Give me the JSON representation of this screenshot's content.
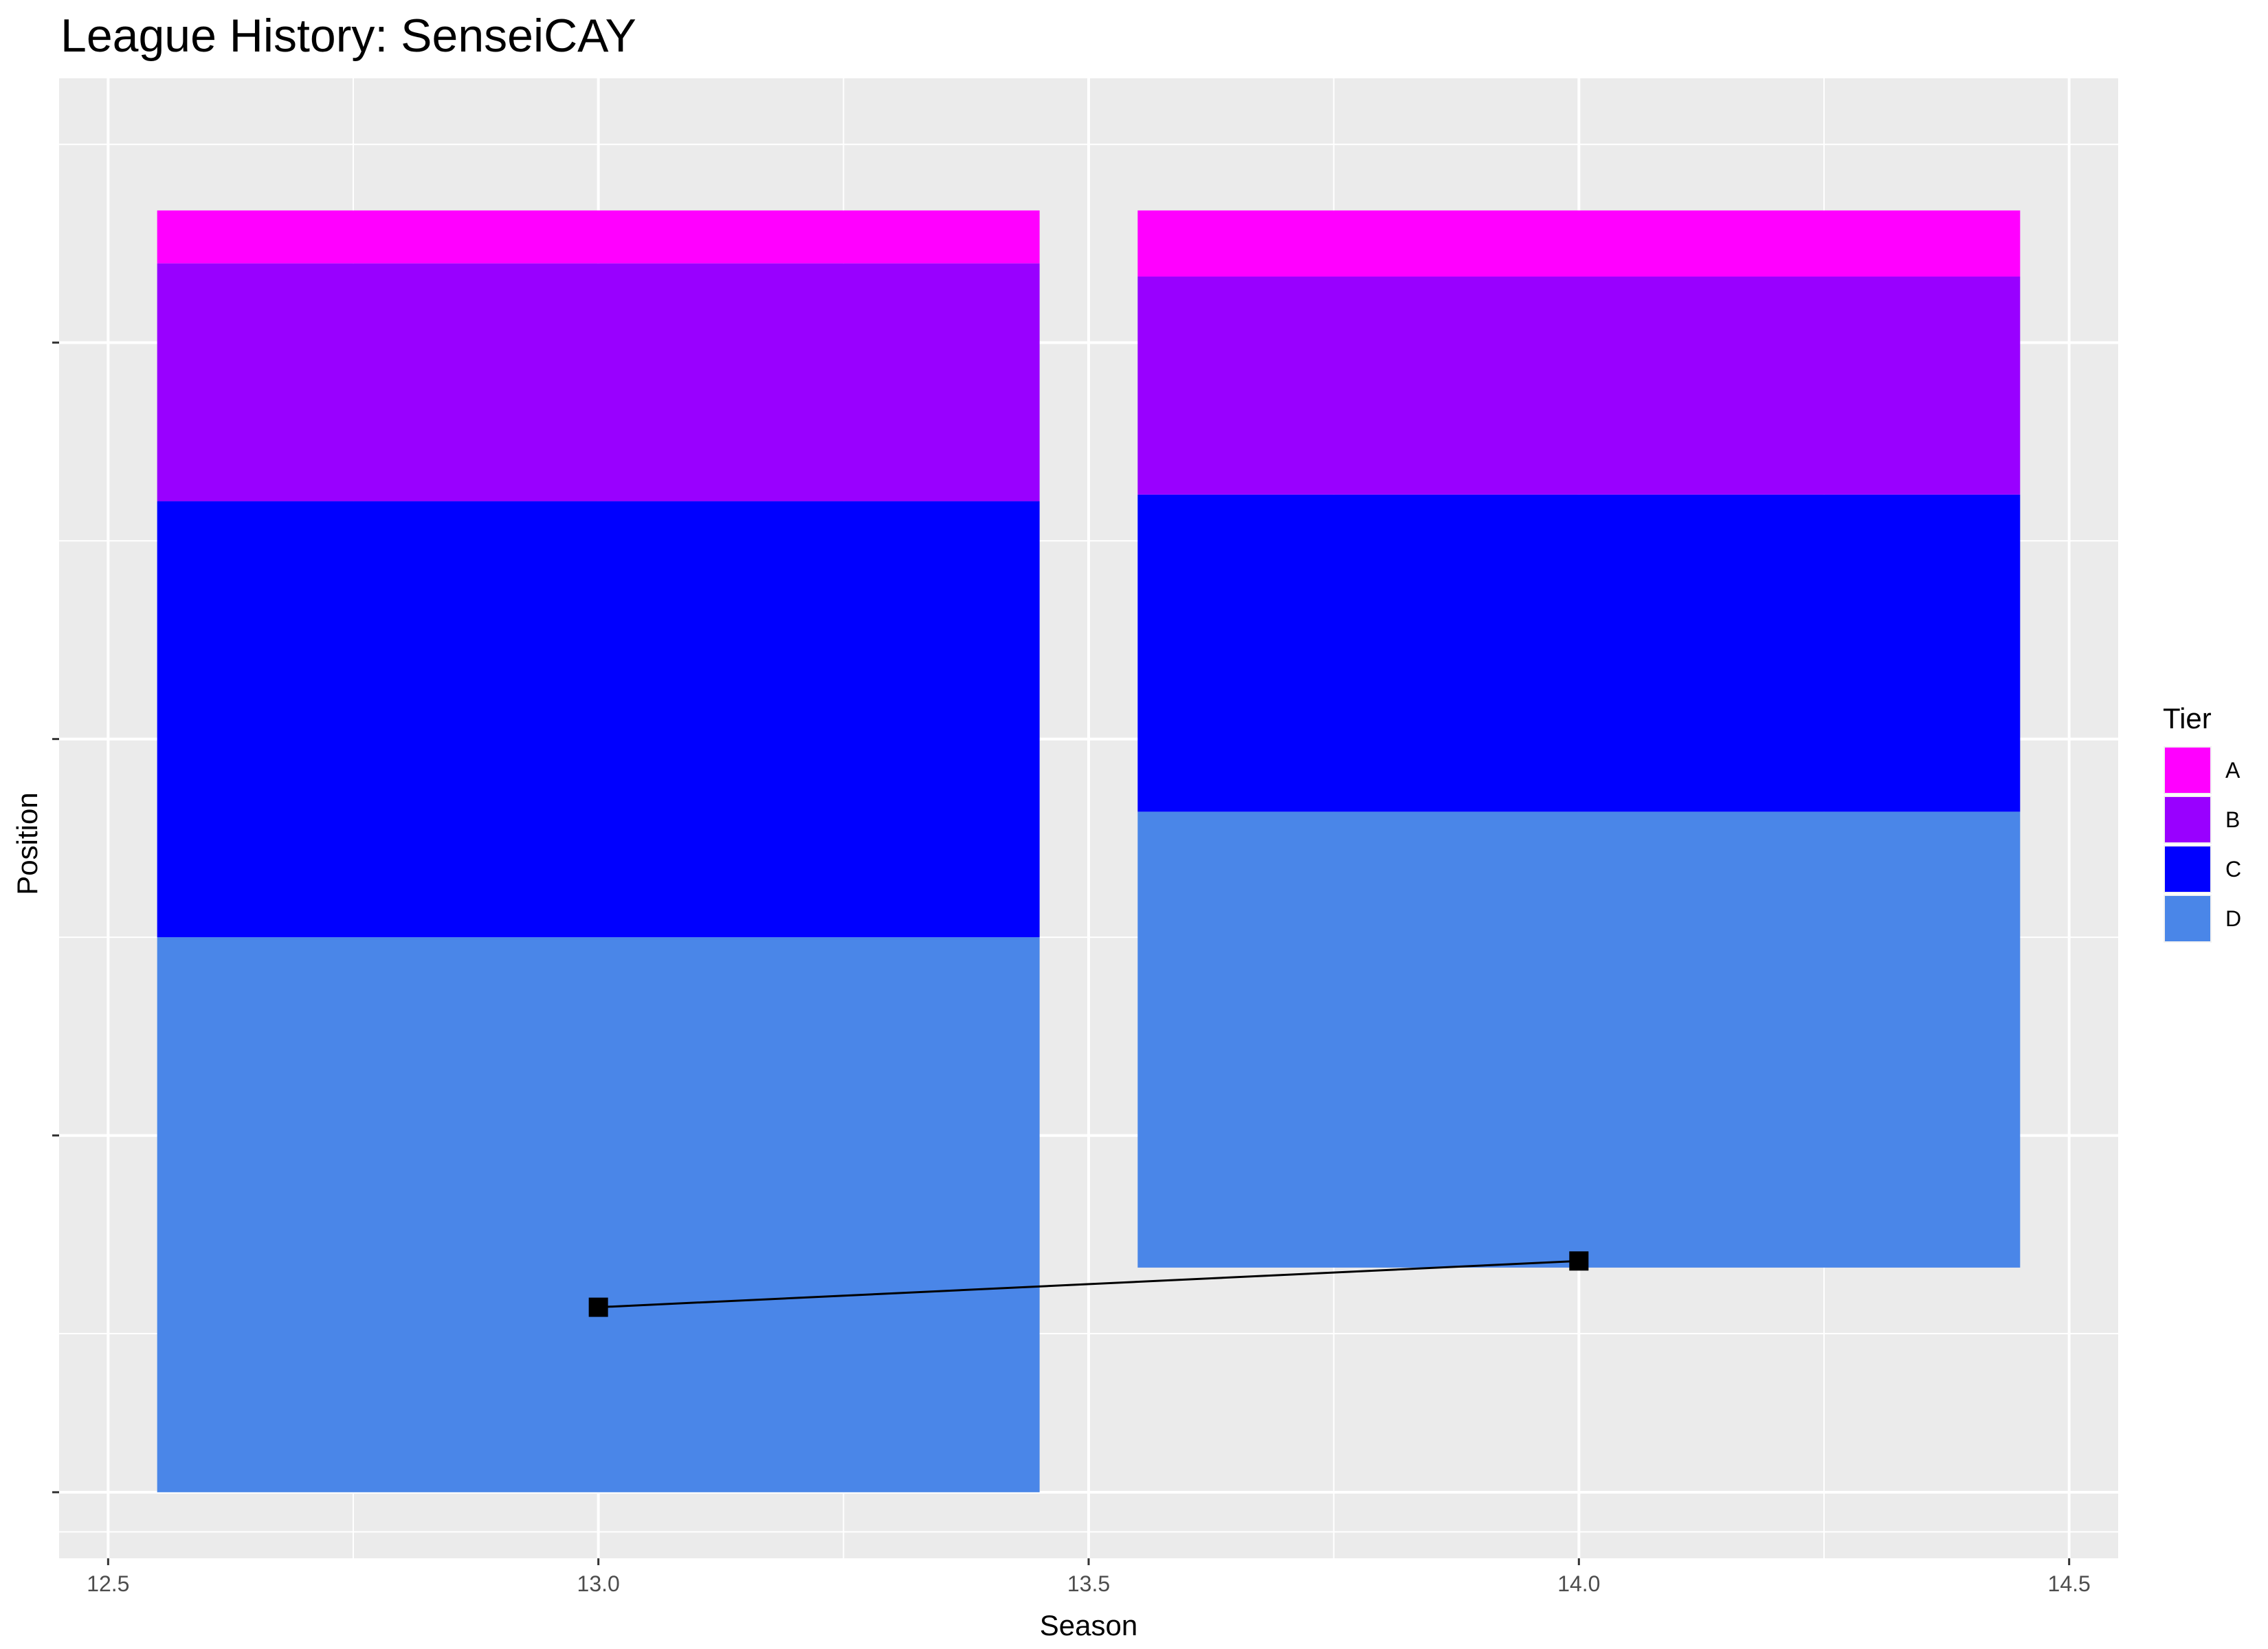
{
  "chart_data": {
    "type": "bar",
    "title": "League History: SenseiCAY",
    "xlabel": "Season",
    "ylabel": "Position",
    "xlim": [
      12.45,
      14.55
    ],
    "xticks": [
      "12.5",
      "13.0",
      "13.5",
      "14.0",
      "14.5"
    ],
    "ylim": [
      0,
      1.0
    ],
    "y_tick_labels": [],
    "grid": true,
    "legend": {
      "title": "Tier",
      "placement": "right"
    },
    "tier_colors": {
      "A": "#FF00FF",
      "B": "#9900FF",
      "C": "#0000FF",
      "D": "#4A86E8"
    },
    "stacked_bars": [
      {
        "season": 13,
        "width": 0.9,
        "segments": [
          {
            "tier": "D",
            "from": 0.03,
            "to": 0.45
          },
          {
            "tier": "C",
            "from": 0.45,
            "to": 0.78
          },
          {
            "tier": "B",
            "from": 0.78,
            "to": 0.96
          },
          {
            "tier": "A",
            "from": 0.96,
            "to": 1.05
          }
        ]
      },
      {
        "season": 14,
        "width": 0.9,
        "segments": [
          {
            "tier": "D",
            "from": 0.2,
            "to": 0.545
          },
          {
            "tier": "C",
            "from": 0.545,
            "to": 0.785
          },
          {
            "tier": "B",
            "from": 0.785,
            "to": 0.95
          },
          {
            "tier": "A",
            "from": 0.95,
            "to": 1.05
          }
        ]
      }
    ],
    "series": [
      {
        "type": "line",
        "marker": "square",
        "color": "#000000",
        "points": [
          {
            "x": 13,
            "y": 0.17
          },
          {
            "x": 14,
            "y": 0.205
          }
        ]
      }
    ]
  }
}
